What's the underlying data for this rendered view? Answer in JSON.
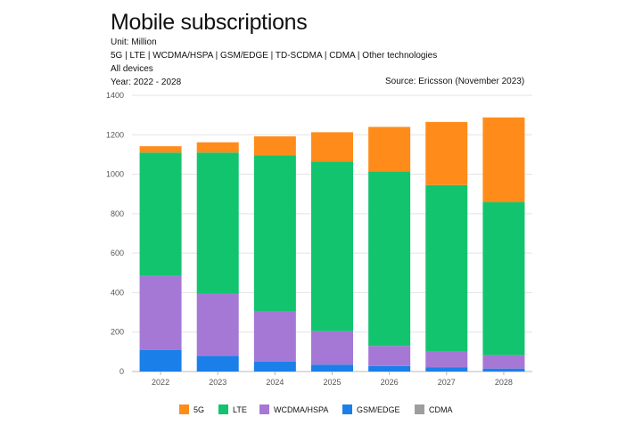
{
  "header": {
    "title": "Mobile subscriptions",
    "unit": "Unit: Million",
    "technologies": "5G | LTE | WCDMA/HSPA | GSM/EDGE | TD-SCDMA | CDMA | Other technologies",
    "devices": "All devices",
    "year": "Year: 2022 - 2028",
    "source": "Source: Ericsson (November 2023)"
  },
  "colors": {
    "5G": "#ff8c1a",
    "LTE": "#12c46e",
    "WCDMA/HSPA": "#a678d6",
    "GSM/EDGE": "#1a7fe8",
    "CDMA": "#9e9e9e"
  },
  "chart_data": {
    "type": "bar",
    "stacked": true,
    "categories": [
      "2022",
      "2023",
      "2024",
      "2025",
      "2026",
      "2027",
      "2028"
    ],
    "series": [
      {
        "name": "CDMA",
        "values": [
          0,
          0,
          0,
          0,
          0,
          0,
          0
        ]
      },
      {
        "name": "GSM/EDGE",
        "values": [
          110,
          80,
          50,
          35,
          28,
          22,
          15
        ]
      },
      {
        "name": "WCDMA/HSPA",
        "values": [
          375,
          315,
          255,
          170,
          102,
          78,
          68
        ]
      },
      {
        "name": "LTE",
        "values": [
          625,
          715,
          790,
          860,
          885,
          845,
          775
        ]
      },
      {
        "name": "5G",
        "values": [
          32,
          52,
          97,
          148,
          225,
          320,
          430
        ]
      }
    ],
    "legend_order": [
      "5G",
      "LTE",
      "WCDMA/HSPA",
      "GSM/EDGE",
      "CDMA"
    ],
    "yticks": [
      0,
      200,
      400,
      600,
      800,
      1000,
      1200,
      1400
    ],
    "ylim": [
      0,
      1400
    ],
    "xlabel": "",
    "ylabel": "",
    "legend_position": "bottom"
  }
}
